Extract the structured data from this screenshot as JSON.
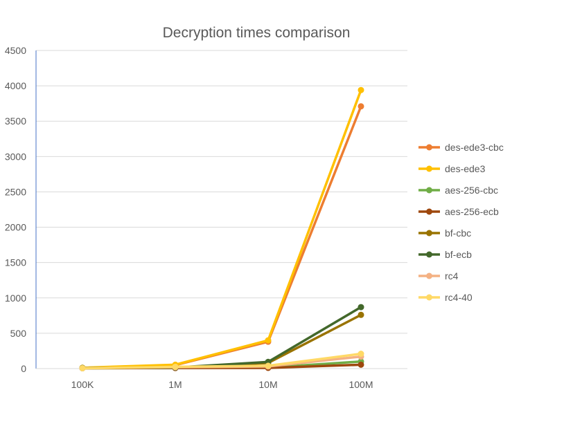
{
  "chart_data": {
    "type": "line",
    "title": "Decryption times comparison",
    "categories": [
      "100K",
      "1M",
      "10M",
      "100M"
    ],
    "ylim": [
      0,
      4500
    ],
    "yticks": [
      0,
      500,
      1000,
      1500,
      2000,
      2500,
      3000,
      3500,
      4000,
      4500
    ],
    "grid": true,
    "legend_position": "right",
    "series": [
      {
        "name": "des-ede3-cbc",
        "color": "#ED7D31",
        "values": [
          10,
          50,
          380,
          3710
        ]
      },
      {
        "name": "des-ede3",
        "color": "#FFC000",
        "values": [
          12,
          55,
          400,
          3940
        ]
      },
      {
        "name": "aes-256-cbc",
        "color": "#70AD47",
        "values": [
          5,
          10,
          15,
          100
        ]
      },
      {
        "name": "aes-256-ecb",
        "color": "#9E480E",
        "values": [
          5,
          8,
          10,
          55
        ]
      },
      {
        "name": "bf-cbc",
        "color": "#997300",
        "values": [
          8,
          15,
          80,
          760
        ]
      },
      {
        "name": "bf-ecb",
        "color": "#43682B",
        "values": [
          8,
          15,
          95,
          870
        ]
      },
      {
        "name": "rc4",
        "color": "#F4B183",
        "values": [
          5,
          20,
          30,
          170
        ]
      },
      {
        "name": "rc4-40",
        "color": "#FFD966",
        "values": [
          5,
          25,
          40,
          210
        ]
      }
    ]
  }
}
